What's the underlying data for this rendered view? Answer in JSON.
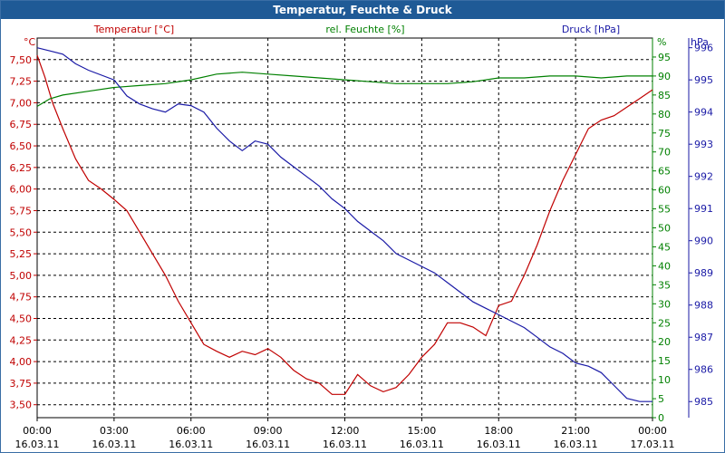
{
  "window": {
    "title": "Temperatur, Feuchte & Druck"
  },
  "colors": {
    "temperature": "#c00000",
    "humidity": "#008000",
    "pressure": "#1a1aa6",
    "title_bar": "#1f5a96"
  },
  "chart_data": {
    "type": "line",
    "title": "Temperatur, Feuchte & Druck",
    "grid": true,
    "x_axis": {
      "ticks": [
        {
          "time": "00:00",
          "date": "16.03.11"
        },
        {
          "time": "03:00",
          "date": "16.03.11"
        },
        {
          "time": "06:00",
          "date": "16.03.11"
        },
        {
          "time": "09:00",
          "date": "16.03.11"
        },
        {
          "time": "12:00",
          "date": "16.03.11"
        },
        {
          "time": "15:00",
          "date": "16.03.11"
        },
        {
          "time": "18:00",
          "date": "16.03.11"
        },
        {
          "time": "21:00",
          "date": "16.03.11"
        },
        {
          "time": "00:00",
          "date": "17.03.11"
        }
      ]
    },
    "axes": {
      "temperature": {
        "label": "Temperatur [°C]",
        "unit": "°C",
        "side": "left",
        "range": [
          3.35,
          7.75
        ],
        "ticks": [
          "7,50",
          "7,25",
          "7,00",
          "6,75",
          "6,50",
          "6,25",
          "6,00",
          "5,75",
          "5,50",
          "5,25",
          "5,00",
          "4,75",
          "4,50",
          "4,25",
          "4,00",
          "3,75",
          "3,50"
        ]
      },
      "humidity": {
        "label": "rel. Feuchte [%]",
        "unit": "%",
        "side": "right",
        "range": [
          0,
          100
        ],
        "ticks": [
          "95",
          "90",
          "85",
          "80",
          "75",
          "70",
          "65",
          "60",
          "55",
          "50",
          "45",
          "40",
          "35",
          "30",
          "25",
          "20",
          "15",
          "10",
          "5",
          "0"
        ]
      },
      "pressure": {
        "label": "Druck [hPa]",
        "unit": "hPa",
        "side": "right",
        "range": [
          984.5,
          996.3
        ],
        "ticks": [
          "996",
          "995",
          "994",
          "993",
          "992",
          "991",
          "990",
          "989",
          "988",
          "987",
          "986",
          "985"
        ]
      }
    },
    "series": [
      {
        "name": "Temperatur [°C]",
        "axis": "temperature",
        "points": [
          [
            0,
            7.55
          ],
          [
            0.3,
            7.3
          ],
          [
            0.6,
            7.0
          ],
          [
            1.0,
            6.7
          ],
          [
            1.5,
            6.35
          ],
          [
            2.0,
            6.1
          ],
          [
            2.5,
            6.0
          ],
          [
            3.0,
            5.88
          ],
          [
            3.5,
            5.75
          ],
          [
            4.0,
            5.5
          ],
          [
            4.5,
            5.25
          ],
          [
            5.0,
            5.0
          ],
          [
            5.5,
            4.7
          ],
          [
            6.0,
            4.45
          ],
          [
            6.5,
            4.2
          ],
          [
            7.0,
            4.12
          ],
          [
            7.5,
            4.05
          ],
          [
            8.0,
            4.12
          ],
          [
            8.5,
            4.08
          ],
          [
            9.0,
            4.15
          ],
          [
            9.5,
            4.05
          ],
          [
            10.0,
            3.9
          ],
          [
            10.5,
            3.8
          ],
          [
            11.0,
            3.75
          ],
          [
            11.5,
            3.62
          ],
          [
            12.0,
            3.62
          ],
          [
            12.5,
            3.85
          ],
          [
            13.0,
            3.72
          ],
          [
            13.5,
            3.65
          ],
          [
            14.0,
            3.7
          ],
          [
            14.5,
            3.85
          ],
          [
            15.0,
            4.05
          ],
          [
            15.5,
            4.2
          ],
          [
            16.0,
            4.45
          ],
          [
            16.5,
            4.45
          ],
          [
            17.0,
            4.4
          ],
          [
            17.5,
            4.3
          ],
          [
            18.0,
            4.65
          ],
          [
            18.5,
            4.7
          ],
          [
            19.0,
            5.0
          ],
          [
            19.5,
            5.35
          ],
          [
            20.0,
            5.75
          ],
          [
            20.5,
            6.1
          ],
          [
            21.0,
            6.4
          ],
          [
            21.5,
            6.7
          ],
          [
            22.0,
            6.8
          ],
          [
            22.5,
            6.85
          ],
          [
            23.0,
            6.95
          ],
          [
            23.5,
            7.05
          ],
          [
            24.0,
            7.15
          ]
        ]
      },
      {
        "name": "rel. Feuchte [%]",
        "axis": "humidity",
        "points": [
          [
            0,
            82
          ],
          [
            0.5,
            84
          ],
          [
            1.0,
            85
          ],
          [
            2.0,
            86
          ],
          [
            3.0,
            87
          ],
          [
            4.0,
            87.5
          ],
          [
            5.0,
            88
          ],
          [
            6.0,
            89
          ],
          [
            7.0,
            90.5
          ],
          [
            8.0,
            91
          ],
          [
            9.0,
            90.5
          ],
          [
            10.0,
            90
          ],
          [
            11.0,
            89.5
          ],
          [
            12.0,
            89
          ],
          [
            13.0,
            88.5
          ],
          [
            14.0,
            88
          ],
          [
            15.0,
            88
          ],
          [
            16.0,
            88
          ],
          [
            17.0,
            88.5
          ],
          [
            18.0,
            89.5
          ],
          [
            19.0,
            89.5
          ],
          [
            20.0,
            90
          ],
          [
            21.0,
            90
          ],
          [
            22.0,
            89.5
          ],
          [
            23.0,
            90
          ],
          [
            24.0,
            90
          ]
        ]
      },
      {
        "name": "Druck [hPa]",
        "axis": "pressure",
        "points": [
          [
            0,
            996.0
          ],
          [
            0.5,
            995.9
          ],
          [
            1.0,
            995.8
          ],
          [
            1.5,
            995.5
          ],
          [
            2.0,
            995.3
          ],
          [
            3.0,
            995.0
          ],
          [
            3.5,
            994.5
          ],
          [
            4.0,
            994.25
          ],
          [
            4.5,
            994.1
          ],
          [
            5.0,
            994.0
          ],
          [
            5.5,
            994.25
          ],
          [
            6.0,
            994.2
          ],
          [
            6.5,
            994.0
          ],
          [
            7.0,
            993.5
          ],
          [
            7.5,
            993.1
          ],
          [
            8.0,
            992.8
          ],
          [
            8.5,
            993.1
          ],
          [
            9.0,
            993.0
          ],
          [
            9.5,
            992.6
          ],
          [
            10.0,
            992.3
          ],
          [
            10.5,
            992.0
          ],
          [
            11.0,
            991.7
          ],
          [
            11.5,
            991.3
          ],
          [
            12.0,
            991.0
          ],
          [
            12.5,
            990.6
          ],
          [
            13.0,
            990.3
          ],
          [
            13.5,
            990.0
          ],
          [
            14.0,
            989.6
          ],
          [
            14.5,
            989.4
          ],
          [
            15.0,
            989.2
          ],
          [
            15.5,
            989.0
          ],
          [
            16.0,
            988.7
          ],
          [
            16.5,
            988.4
          ],
          [
            17.0,
            988.1
          ],
          [
            17.5,
            987.9
          ],
          [
            18.0,
            987.7
          ],
          [
            18.5,
            987.5
          ],
          [
            19.0,
            987.3
          ],
          [
            19.5,
            987.0
          ],
          [
            20.0,
            986.7
          ],
          [
            20.5,
            986.5
          ],
          [
            21.0,
            986.2
          ],
          [
            21.5,
            986.1
          ],
          [
            22.0,
            985.9
          ],
          [
            22.5,
            985.5
          ],
          [
            23.0,
            985.1
          ],
          [
            23.5,
            985.0
          ],
          [
            24.0,
            985.0
          ]
        ]
      }
    ]
  }
}
